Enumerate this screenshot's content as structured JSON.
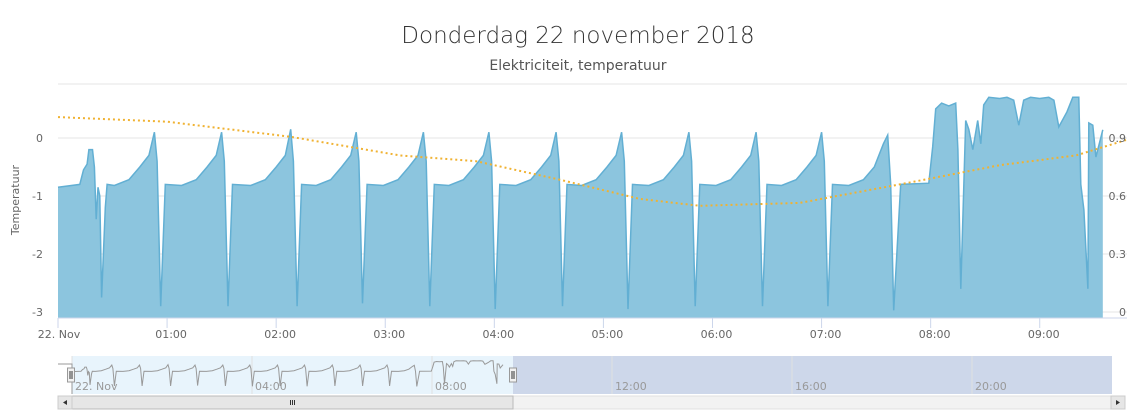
{
  "chart_data": {
    "type": "area",
    "title": "Donderdag 22 november 2018",
    "subtitle": "Elektriciteit, temperatuur",
    "x_unit": "minutes since 22. Nov 00:00",
    "xlim": [
      0,
      588
    ],
    "x_ticks": [
      {
        "label": "22. Nov",
        "value": 0
      },
      {
        "label": "01:00",
        "value": 60
      },
      {
        "label": "02:00",
        "value": 120
      },
      {
        "label": "03:00",
        "value": 180
      },
      {
        "label": "04:00",
        "value": 240
      },
      {
        "label": "05:00",
        "value": 300
      },
      {
        "label": "06:00",
        "value": 360
      },
      {
        "label": "07:00",
        "value": 420
      },
      {
        "label": "08:00",
        "value": 480
      },
      {
        "label": "09:00",
        "value": 540
      }
    ],
    "y_left": {
      "title": "Temperatuur",
      "ylim": [
        -3,
        0.93
      ],
      "ticks": [
        "-3",
        "-2",
        "-1",
        "0"
      ],
      "tick_values": [
        -3,
        -2,
        -1,
        0
      ]
    },
    "y_right": {
      "ylim": [
        0,
        1.18
      ],
      "ticks": [
        "0",
        "0.3",
        "0.6",
        "0.9"
      ],
      "tick_values": [
        0,
        0.3,
        0.6,
        0.9
      ]
    },
    "series": [
      {
        "name": "Elektriciteit",
        "type": "area",
        "color": "#8cc5de",
        "line_color": "#62afd3",
        "points": [
          [
            0,
            -0.85
          ],
          [
            12,
            -0.8
          ],
          [
            14,
            -0.55
          ],
          [
            16,
            -0.45
          ],
          [
            17,
            -0.2
          ],
          [
            19,
            -0.2
          ],
          [
            20,
            -0.5
          ],
          [
            21,
            -1.4
          ],
          [
            22,
            -0.85
          ],
          [
            23,
            -1.0
          ],
          [
            24,
            -2.75
          ],
          [
            26,
            -1.2
          ],
          [
            27,
            -0.8
          ],
          [
            31,
            -0.82
          ],
          [
            39,
            -0.72
          ],
          [
            45,
            -0.5
          ],
          [
            50,
            -0.3
          ],
          [
            53,
            0.1
          ],
          [
            54.5,
            -0.4
          ],
          [
            56.5,
            -2.9
          ],
          [
            59,
            -0.8
          ],
          [
            68,
            -0.82
          ],
          [
            76,
            -0.72
          ],
          [
            82,
            -0.5
          ],
          [
            87,
            -0.3
          ],
          [
            90,
            0.1
          ],
          [
            91.5,
            -0.4
          ],
          [
            93.5,
            -2.9
          ],
          [
            96,
            -0.8
          ],
          [
            106,
            -0.82
          ],
          [
            114,
            -0.72
          ],
          [
            120,
            -0.5
          ],
          [
            125,
            -0.3
          ],
          [
            128,
            0.15
          ],
          [
            129.5,
            -0.4
          ],
          [
            131.5,
            -2.9
          ],
          [
            134,
            -0.8
          ],
          [
            142,
            -0.82
          ],
          [
            150,
            -0.72
          ],
          [
            156,
            -0.5
          ],
          [
            161,
            -0.3
          ],
          [
            164,
            0.1
          ],
          [
            165.5,
            -0.4
          ],
          [
            167.5,
            -2.85
          ],
          [
            170,
            -0.8
          ],
          [
            179,
            -0.82
          ],
          [
            187,
            -0.72
          ],
          [
            193,
            -0.5
          ],
          [
            198,
            -0.3
          ],
          [
            201,
            0.1
          ],
          [
            202.5,
            -0.4
          ],
          [
            204.5,
            -2.9
          ],
          [
            207,
            -0.8
          ],
          [
            215,
            -0.82
          ],
          [
            223,
            -0.72
          ],
          [
            229,
            -0.5
          ],
          [
            234,
            -0.3
          ],
          [
            237,
            0.1
          ],
          [
            238.5,
            -0.4
          ],
          [
            240.5,
            -2.95
          ],
          [
            243,
            -0.8
          ],
          [
            252,
            -0.82
          ],
          [
            260,
            -0.72
          ],
          [
            266,
            -0.5
          ],
          [
            271,
            -0.3
          ],
          [
            274,
            0.1
          ],
          [
            275.5,
            -0.4
          ],
          [
            277.5,
            -2.9
          ],
          [
            280,
            -0.8
          ],
          [
            288,
            -0.82
          ],
          [
            296,
            -0.72
          ],
          [
            302,
            -0.5
          ],
          [
            307,
            -0.3
          ],
          [
            310,
            0.1
          ],
          [
            311.5,
            -0.4
          ],
          [
            313.5,
            -2.95
          ],
          [
            316,
            -0.8
          ],
          [
            325,
            -0.82
          ],
          [
            333,
            -0.72
          ],
          [
            339,
            -0.5
          ],
          [
            344,
            -0.3
          ],
          [
            347,
            0.1
          ],
          [
            348.5,
            -0.4
          ],
          [
            350.5,
            -2.9
          ],
          [
            353,
            -0.8
          ],
          [
            362,
            -0.82
          ],
          [
            370,
            -0.72
          ],
          [
            376,
            -0.5
          ],
          [
            381,
            -0.3
          ],
          [
            384,
            0.1
          ],
          [
            385.5,
            -0.4
          ],
          [
            387.5,
            -2.9
          ],
          [
            390,
            -0.8
          ],
          [
            398,
            -0.82
          ],
          [
            406,
            -0.72
          ],
          [
            412,
            -0.5
          ],
          [
            417,
            -0.3
          ],
          [
            420,
            0.1
          ],
          [
            421.5,
            -0.4
          ],
          [
            423.5,
            -2.9
          ],
          [
            426,
            -0.8
          ],
          [
            435,
            -0.82
          ],
          [
            443,
            -0.72
          ],
          [
            449,
            -0.5
          ],
          [
            454,
            -0.1
          ],
          [
            456.4,
            0.05
          ],
          [
            458,
            -0.8
          ],
          [
            459.7,
            -2.97
          ],
          [
            463.5,
            -0.8
          ],
          [
            479,
            -0.78
          ],
          [
            481.1,
            -0.15
          ],
          [
            482.8,
            0.5
          ],
          [
            486,
            0.6
          ],
          [
            490,
            0.55
          ],
          [
            493.8,
            0.6
          ],
          [
            495,
            -0.2
          ],
          [
            496.6,
            -2.6
          ],
          [
            499.3,
            0.3
          ],
          [
            501,
            0.15
          ],
          [
            503.2,
            -0.2
          ],
          [
            505.9,
            0.3
          ],
          [
            507.6,
            -0.1
          ],
          [
            509.2,
            0.57
          ],
          [
            512,
            0.7
          ],
          [
            518,
            0.68
          ],
          [
            522,
            0.7
          ],
          [
            525.7,
            0.65
          ],
          [
            528.5,
            0.22
          ],
          [
            531.2,
            0.65
          ],
          [
            535,
            0.7
          ],
          [
            540,
            0.68
          ],
          [
            545,
            0.7
          ],
          [
            547.8,
            0.65
          ],
          [
            550.5,
            0.19
          ],
          [
            555,
            0.45
          ],
          [
            558.2,
            0.7
          ],
          [
            561.5,
            0.7
          ],
          [
            562.6,
            -0.8
          ],
          [
            564.3,
            -1.24
          ],
          [
            566.5,
            -2.6
          ],
          [
            567,
            0.26
          ],
          [
            569.2,
            0.22
          ],
          [
            570.9,
            -0.33
          ],
          [
            574.7,
            0.14
          ]
        ]
      },
      {
        "name": "Temperatuur",
        "type": "line",
        "dash": "dotted",
        "color": "#f0b232",
        "points": [
          [
            0,
            0.36
          ],
          [
            60,
            0.28
          ],
          [
            128,
            0.02
          ],
          [
            188,
            -0.3
          ],
          [
            230,
            -0.4
          ],
          [
            276,
            -0.72
          ],
          [
            320,
            -1.05
          ],
          [
            353,
            -1.17
          ],
          [
            408,
            -1.12
          ],
          [
            463,
            -0.8
          ],
          [
            518,
            -0.47
          ],
          [
            560,
            -0.3
          ],
          [
            588,
            -0.03
          ]
        ]
      }
    ],
    "legend": "none",
    "grid": true
  },
  "navigator": {
    "ticks": [
      {
        "label": "22. Nov",
        "hour": 0
      },
      {
        "label": "04:00",
        "hour": 4
      },
      {
        "label": "08:00",
        "hour": 8
      },
      {
        "label": "12:00",
        "hour": 12
      },
      {
        "label": "16:00",
        "hour": 16
      },
      {
        "label": "20:00",
        "hour": 20
      }
    ],
    "selected_range_hours": [
      0,
      9.8
    ],
    "total_hours": 23.5
  }
}
